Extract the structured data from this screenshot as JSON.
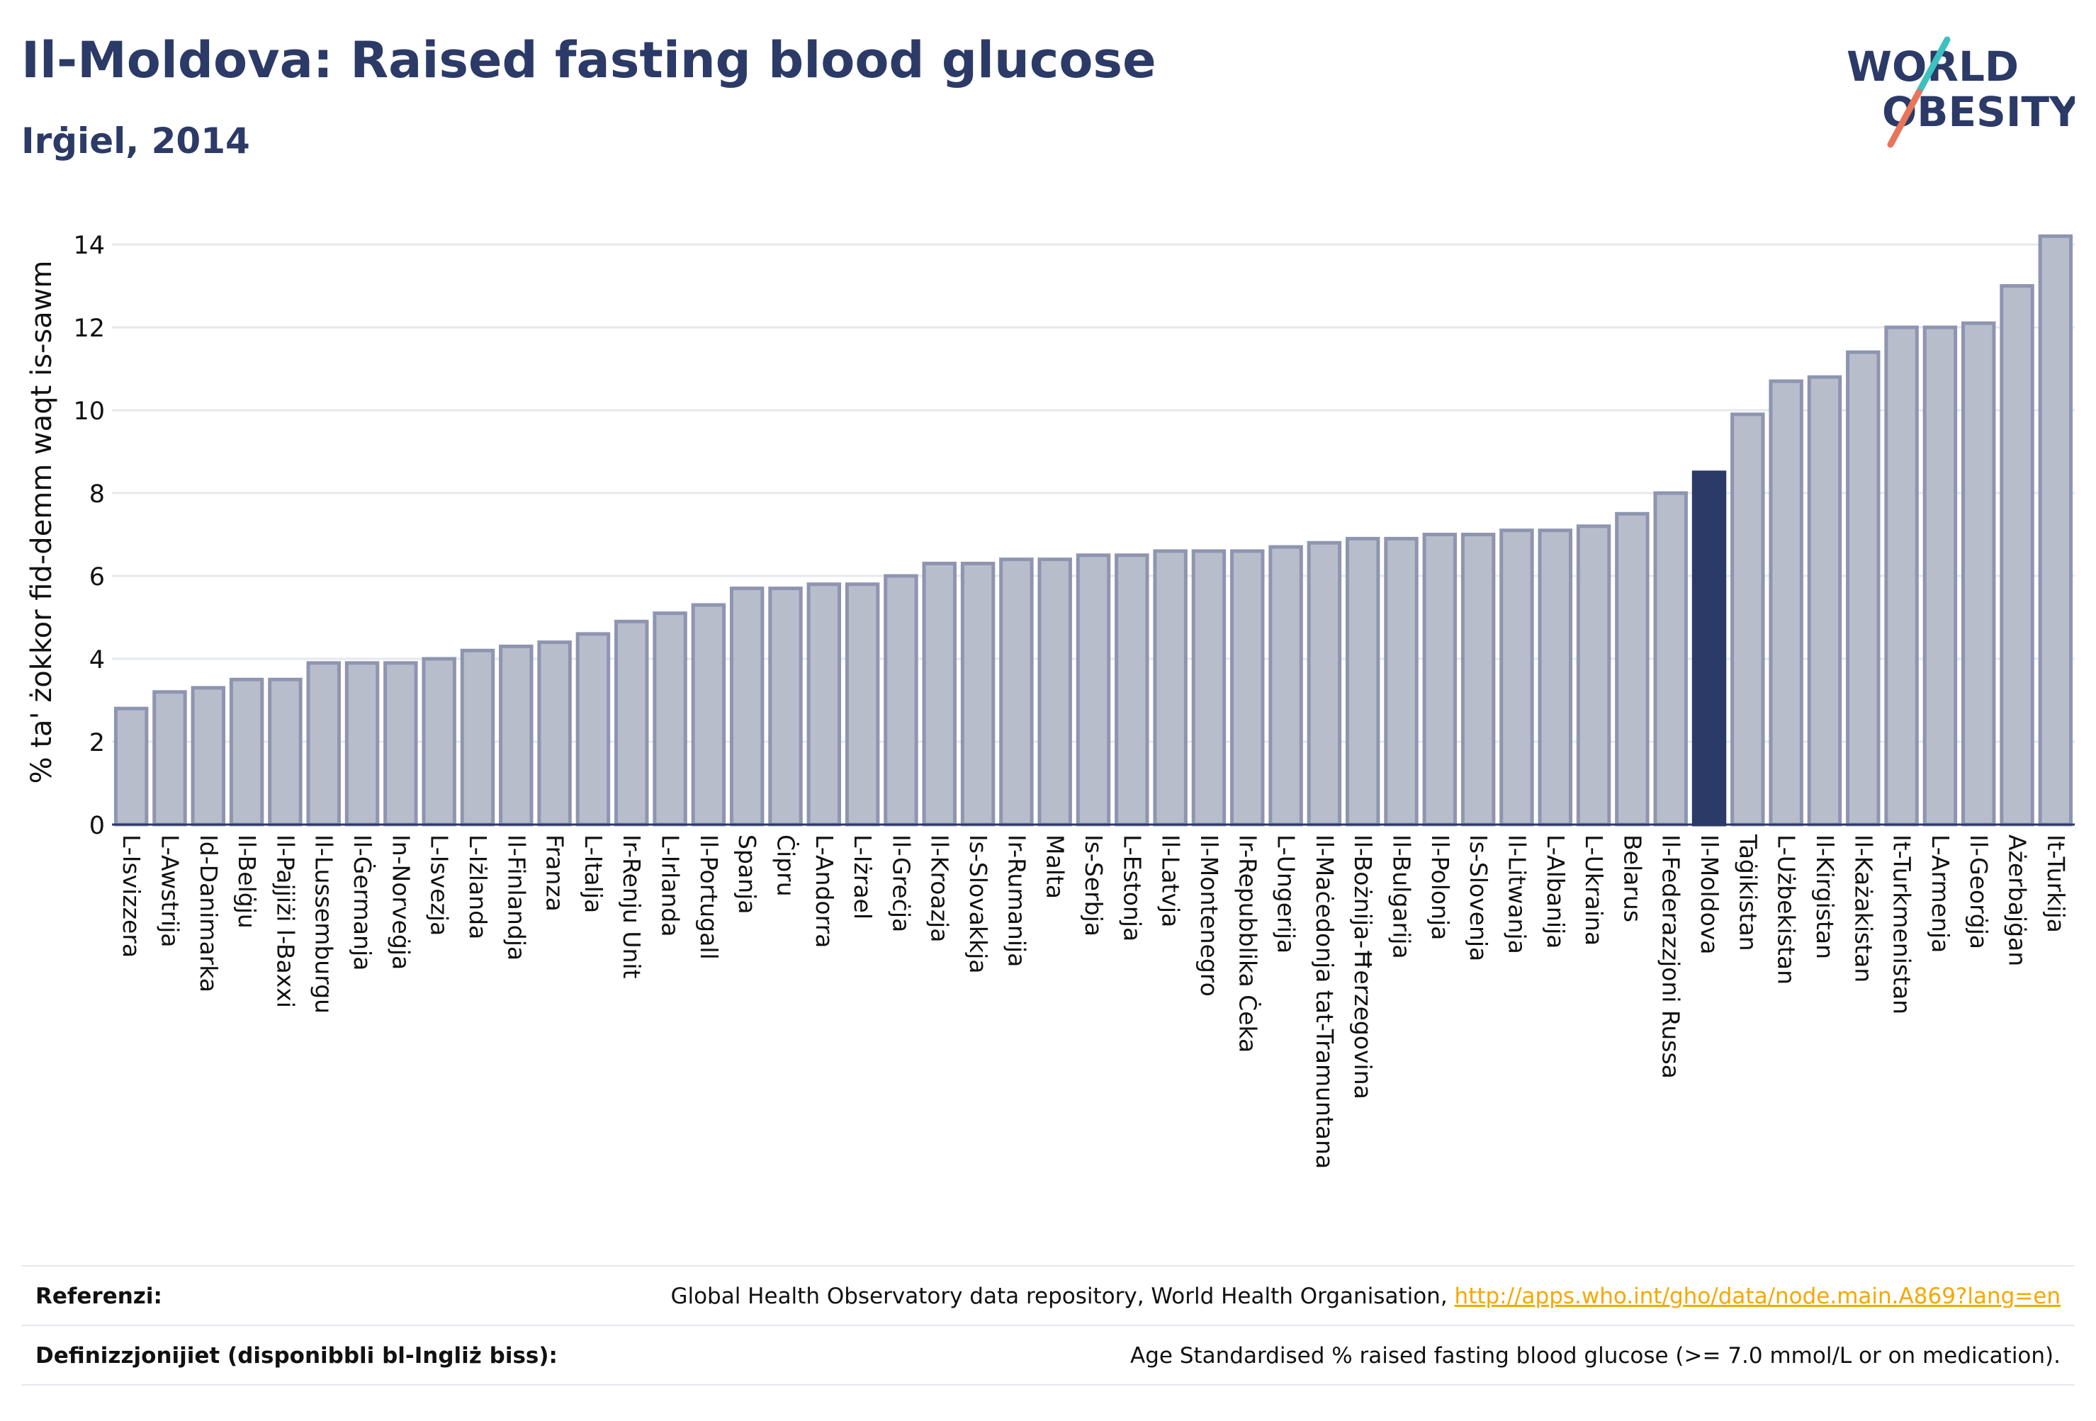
{
  "header": {
    "title": "Il-Moldova: Raised fasting blood glucose",
    "subtitle": "Irġiel, 2014"
  },
  "logo": {
    "line1": "WORLD",
    "line2": "OBESITY",
    "colors": {
      "text": "#2b3a67",
      "slash_top": "#3cc0c0",
      "slash_bottom": "#e8745a"
    }
  },
  "chart_data": {
    "type": "bar",
    "title": "Il-Moldova: Raised fasting blood glucose",
    "subtitle": "Irġiel, 2014",
    "xlabel": "",
    "ylabel": "% ta' żokkor fid-demm waqt is-sawm",
    "ylim": [
      0,
      14.6
    ],
    "yticks": [
      0,
      2,
      4,
      6,
      8,
      10,
      12,
      14
    ],
    "grid": true,
    "highlight": "Il-Moldova",
    "colors": {
      "bar": "#b8bdcc",
      "bar_edge": "#8e95b0",
      "highlight": "#2b3a67",
      "grid": "#e6e8ef"
    },
    "categories": [
      "L-Isvizzera",
      "L-Awstrija",
      "Id-Danimarka",
      "Il-Belġju",
      "Il-Pajjiżi l-Baxxi",
      "Il-Lussemburgu",
      "Il-Ġermanja",
      "In-Norveġja",
      "L-Isvezja",
      "L-Iżlanda",
      "Il-Finlandja",
      "Franza",
      "L-Italja",
      "Ir-Renju Unit",
      "L-Irlanda",
      "Il-Portugall",
      "Spanja",
      "Ċipru",
      "L-Andorra",
      "L-Iżrael",
      "Il-Greċja",
      "Il-Kroazja",
      "Is-Slovakkja",
      "Ir-Rumanija",
      "Malta",
      "Is-Serbja",
      "L-Estonja",
      "Il-Latvja",
      "Il-Montenegro",
      "Ir-Repubblika Ċeka",
      "L-Ungerija",
      "Il-Maċedonja tat-Tramuntana",
      "Il-Bożnija-Ħerzegovina",
      "Il-Bulgarija",
      "Il-Polonja",
      "Is-Slovenja",
      "Il-Litwanja",
      "L-Albanija",
      "L-Ukraina",
      "Belarus",
      "Il-Federazzjoni Russa",
      "Il-Moldova",
      "Taġikistan",
      "L-Użbekistan",
      "Il-Kirgistan",
      "Il-Każakistan",
      "It-Turkmenistan",
      "L-Armenja",
      "Il-Georġja",
      "Ażerbajġan",
      "It-Turkija"
    ],
    "values": [
      2.8,
      3.2,
      3.3,
      3.5,
      3.5,
      3.9,
      3.9,
      3.9,
      4.0,
      4.2,
      4.3,
      4.4,
      4.6,
      4.9,
      5.1,
      5.3,
      5.7,
      5.7,
      5.8,
      5.8,
      6.0,
      6.3,
      6.3,
      6.4,
      6.4,
      6.5,
      6.5,
      6.6,
      6.6,
      6.6,
      6.7,
      6.8,
      6.9,
      6.9,
      7.0,
      7.0,
      7.1,
      7.1,
      7.2,
      7.5,
      8.0,
      8.5,
      9.9,
      10.7,
      10.8,
      11.4,
      12.0,
      12.0,
      12.1,
      13.0,
      14.2
    ]
  },
  "footer": {
    "references_label": "Referenzi:",
    "references_text": "Global Health Observatory data repository, World Health Organisation, ",
    "references_link": "http://apps.who.int/gho/data/node.main.A869?lang=en",
    "definitions_label": "Definizzjonijiet (disponibbli bl-Ingliż biss):",
    "definitions_text": "Age Standardised % raised fasting blood glucose (>= 7.0 mmol/L or on medication)."
  }
}
